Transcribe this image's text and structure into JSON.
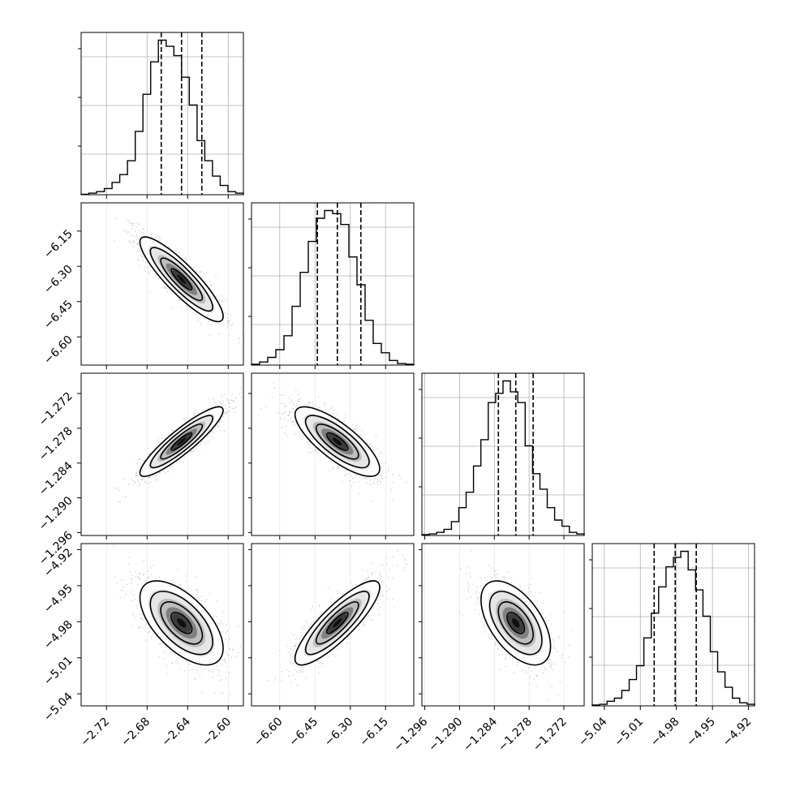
{
  "chart_data": {
    "type": "corner",
    "parameters": [
      "",
      "",
      "",
      ""
    ],
    "quantile_levels": [
      0.16,
      0.5,
      0.84
    ],
    "grid": true,
    "params": [
      {
        "ticks": [
          -2.72,
          -2.68,
          -2.64,
          -2.6
        ],
        "tick_labels": [
          "−2.72",
          "−2.68",
          "−2.64",
          "−2.60"
        ],
        "lim": [
          -2.745,
          -2.585
        ],
        "quantiles": [
          -2.666,
          -2.646,
          -2.626
        ],
        "mean": -2.646,
        "sd": 0.0205,
        "hist": [
          0.3,
          1,
          2,
          4,
          8,
          13,
          22,
          41,
          65,
          86,
          100,
          96,
          90,
          76,
          58,
          35,
          22,
          12,
          6,
          2,
          1
        ]
      },
      {
        "ticks": [
          -6.6,
          -6.45,
          -6.3,
          -6.15
        ],
        "tick_labels": [
          "−6.60",
          "−6.45",
          "−6.30",
          "−6.15"
        ],
        "lim": [
          -6.72,
          -6.03
        ],
        "quantiles": [
          -6.44,
          -6.355,
          -6.255
        ],
        "mean": -6.355,
        "sd": 0.09,
        "hist": [
          0.5,
          2,
          5,
          10,
          19,
          38,
          60,
          80,
          95,
          100,
          98,
          91,
          70,
          52,
          29,
          14,
          8,
          3,
          1,
          0.5
        ]
      },
      {
        "ticks": [
          -1.296,
          -1.29,
          -1.284,
          -1.278,
          -1.272
        ],
        "tick_labels": [
          "−1.296",
          "−1.290",
          "−1.284",
          "−1.278",
          "−1.272"
        ],
        "lim": [
          -1.2965,
          -1.2685
        ],
        "quantiles": [
          -1.2833,
          -1.2803,
          -1.2773
        ],
        "mean": -1.2803,
        "sd": 0.003,
        "hist": [
          0.5,
          1,
          2,
          4,
          9,
          18,
          28,
          45,
          62,
          86,
          92,
          100,
          93,
          86,
          58,
          40,
          30,
          18,
          10,
          6,
          2,
          1
        ]
      },
      {
        "ticks": [
          -5.04,
          -5.01,
          -4.98,
          -4.95,
          -4.92
        ],
        "tick_labels": [
          "−5.04",
          "−5.01",
          "−4.98",
          "−4.95",
          "−4.92"
        ],
        "lim": [
          -5.05,
          -4.915
        ],
        "quantiles": [
          -4.9985,
          -4.981,
          -4.9635
        ],
        "mean": -4.981,
        "sd": 0.0175,
        "hist": [
          0.5,
          1,
          3,
          5,
          10,
          17,
          26,
          44,
          60,
          77,
          90,
          96,
          100,
          88,
          75,
          58,
          35,
          22,
          12,
          5,
          2,
          1
        ]
      }
    ],
    "correlations": [
      {
        "row": 1,
        "col": 0,
        "r": -0.88
      },
      {
        "row": 2,
        "col": 0,
        "r": 0.9
      },
      {
        "row": 2,
        "col": 1,
        "r": -0.78
      },
      {
        "row": 3,
        "col": 0,
        "r": -0.6
      },
      {
        "row": 3,
        "col": 1,
        "r": 0.85
      },
      {
        "row": 3,
        "col": 2,
        "r": -0.55
      }
    ],
    "contour_levels_sigma": [
      0.5,
      1,
      1.5,
      2
    ]
  }
}
